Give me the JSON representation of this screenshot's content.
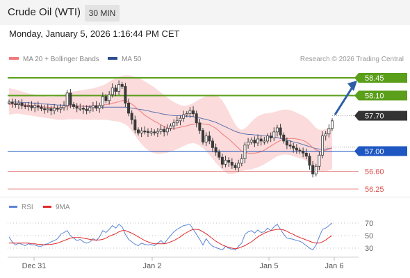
{
  "header": {
    "instrument": "Crude Oil (WTI)",
    "timeframe": "30 MIN"
  },
  "datetime": "Monday, January 5, 2026 1:16:44 PM CET",
  "legend": {
    "bollinger": "MA 20 + Bollinger Bands",
    "ma50": "MA 50"
  },
  "credit": "Research © 2026 Trading Central",
  "rsi_legend": {
    "rsi": "RSI",
    "ma9": "9MA"
  },
  "colors": {
    "resistance": "#5a9e1a",
    "support": "#1f57c2",
    "pivot": "#333333",
    "stop": "#e88b8b",
    "arrow": "#2f5ea8",
    "band": "#fbd7d7",
    "ma20": "#f07b7b",
    "ma50": "#5e73b0",
    "rsi": "#5b84d6",
    "rsi_ma": "#e02a2a",
    "candle": "#3a3a3a",
    "bull": "#ffffff"
  },
  "chart_data": [
    {
      "type": "candlestick",
      "title": "Crude Oil (WTI)",
      "x_labels": [
        "Dec 31",
        "Jan 2",
        "Jan 5",
        "Jan 6"
      ],
      "ylim": [
        56.0,
        58.75
      ],
      "levels": [
        {
          "value": 58.45,
          "label": "58.45",
          "kind": "resistance"
        },
        {
          "value": 58.1,
          "label": "58.10",
          "kind": "resistance"
        },
        {
          "value": 57.7,
          "label": "57.70",
          "kind": "pivot"
        },
        {
          "value": 57.0,
          "label": "57.00",
          "kind": "support"
        },
        {
          "value": 56.6,
          "label": "56.60",
          "kind": "stop"
        },
        {
          "value": 56.25,
          "label": "56.25",
          "kind": "stop"
        }
      ],
      "closes": [
        57.97,
        57.94,
        57.92,
        57.95,
        57.9,
        57.88,
        57.9,
        57.86,
        57.9,
        57.87,
        57.84,
        57.82,
        57.84,
        57.8,
        57.85,
        57.83,
        57.86,
        57.9,
        58.15,
        57.92,
        57.88,
        57.85,
        57.85,
        57.83,
        57.8,
        57.86,
        57.9,
        57.85,
        57.9,
        58.08,
        58.0,
        58.12,
        58.25,
        58.18,
        58.32,
        58.28,
        57.95,
        57.75,
        57.62,
        57.42,
        57.36,
        57.4,
        57.39,
        57.37,
        57.38,
        57.36,
        57.39,
        57.43,
        57.38,
        57.45,
        57.5,
        57.56,
        57.6,
        57.65,
        57.72,
        57.74,
        57.8,
        57.74,
        57.56,
        57.41,
        57.18,
        57.3,
        57.2,
        57.07,
        56.98,
        56.88,
        56.74,
        56.82,
        56.78,
        56.72,
        56.67,
        56.76,
        56.85,
        57.12,
        57.18,
        57.22,
        57.16,
        57.24,
        57.2,
        57.2,
        57.3,
        57.26,
        57.38,
        57.46,
        57.32,
        57.2,
        57.12,
        57.1,
        57.06,
        57.02,
        57.0,
        56.96,
        56.9,
        56.72,
        56.55,
        56.7,
        56.92,
        57.3,
        57.34,
        57.45,
        57.6
      ],
      "ma20": [
        57.92,
        57.93,
        57.93,
        57.93,
        57.92,
        57.91,
        57.91,
        57.9,
        57.9,
        57.89,
        57.88,
        57.87,
        57.87,
        57.86,
        57.86,
        57.85,
        57.86,
        57.87,
        57.89,
        57.89,
        57.89,
        57.89,
        57.89,
        57.89,
        57.89,
        57.89,
        57.9,
        57.9,
        57.9,
        57.91,
        57.92,
        57.93,
        57.95,
        57.96,
        57.98,
        58.0,
        58.0,
        57.97,
        57.93,
        57.88,
        57.82,
        57.77,
        57.71,
        57.67,
        57.63,
        57.59,
        57.56,
        57.52,
        57.49,
        57.46,
        57.44,
        57.45,
        57.46,
        57.47,
        57.49,
        57.5,
        57.52,
        57.53,
        57.54,
        57.55,
        57.54,
        57.53,
        57.52,
        57.49,
        57.45,
        57.4,
        57.34,
        57.29,
        57.24,
        57.18,
        57.12,
        57.06,
        57.0,
        56.98,
        56.96,
        56.96,
        56.96,
        56.97,
        56.99,
        57.02,
        57.06,
        57.1,
        57.14,
        57.18,
        57.21,
        57.24,
        57.25,
        57.25,
        57.25,
        57.24,
        57.23,
        57.21,
        57.18,
        57.13,
        57.07,
        57.02,
        57.0,
        57.0,
        57.02,
        57.04,
        57.06
      ],
      "ma50": [
        57.97,
        57.97,
        57.97,
        57.97,
        57.96,
        57.96,
        57.96,
        57.95,
        57.95,
        57.95,
        57.94,
        57.93,
        57.93,
        57.92,
        57.92,
        57.91,
        57.91,
        57.91,
        57.91,
        57.9,
        57.9,
        57.9,
        57.89,
        57.89,
        57.88,
        57.88,
        57.88,
        57.87,
        57.87,
        57.87,
        57.87,
        57.87,
        57.87,
        57.87,
        57.87,
        57.87,
        57.87,
        57.86,
        57.85,
        57.84,
        57.83,
        57.82,
        57.81,
        57.8,
        57.78,
        57.77,
        57.76,
        57.74,
        57.73,
        57.72,
        57.71,
        57.7,
        57.7,
        57.7,
        57.69,
        57.69,
        57.69,
        57.68,
        57.67,
        57.66,
        57.64,
        57.63,
        57.61,
        57.59,
        57.57,
        57.54,
        57.51,
        57.48,
        57.45,
        57.42,
        57.39,
        57.37,
        57.35,
        57.34,
        57.33,
        57.33,
        57.32,
        57.32,
        57.31,
        57.3,
        57.3,
        57.29,
        57.28,
        57.27,
        57.25,
        57.24,
        57.22,
        57.2,
        57.18,
        57.17,
        57.15,
        57.13,
        57.11,
        57.09,
        57.07,
        57.05,
        57.04,
        57.04,
        57.04,
        57.05,
        57.06
      ],
      "bands": {
        "upper": [
          58.25,
          58.23,
          58.22,
          58.2,
          58.18,
          58.16,
          58.14,
          58.13,
          58.12,
          58.11,
          58.1,
          58.09,
          58.08,
          58.08,
          58.08,
          58.09,
          58.1,
          58.12,
          58.15,
          58.17,
          58.18,
          58.19,
          58.2,
          58.21,
          58.22,
          58.23,
          58.24,
          58.26,
          58.28,
          58.3,
          58.33,
          58.37,
          58.41,
          58.44,
          58.47,
          58.49,
          58.5,
          58.5,
          58.49,
          58.47,
          58.45,
          58.42,
          58.38,
          58.34,
          58.3,
          58.26,
          58.21,
          58.16,
          58.11,
          58.06,
          58.01,
          57.97,
          57.94,
          57.91,
          57.9,
          57.9,
          57.92,
          57.95,
          57.99,
          58.03,
          58.06,
          58.09,
          58.11,
          58.12,
          58.11,
          58.07,
          58.0,
          57.9,
          57.78,
          57.65,
          57.53,
          57.45,
          57.42,
          57.45,
          57.51,
          57.58,
          57.64,
          57.69,
          57.72,
          57.74,
          57.75,
          57.76,
          57.77,
          57.79,
          57.81,
          57.82,
          57.82,
          57.81,
          57.79,
          57.76,
          57.73,
          57.7,
          57.66,
          57.6,
          57.53,
          57.46,
          57.42,
          57.42,
          57.44,
          57.45,
          57.46
        ],
        "lower": [
          57.72,
          57.73,
          57.74,
          57.74,
          57.73,
          57.72,
          57.71,
          57.7,
          57.69,
          57.68,
          57.67,
          57.66,
          57.65,
          57.64,
          57.63,
          57.62,
          57.62,
          57.62,
          57.63,
          57.63,
          57.63,
          57.63,
          57.63,
          57.62,
          57.62,
          57.62,
          57.62,
          57.62,
          57.62,
          57.62,
          57.62,
          57.61,
          57.6,
          57.59,
          57.58,
          57.56,
          57.53,
          57.48,
          57.4,
          57.31,
          57.22,
          57.14,
          57.07,
          57.02,
          56.98,
          56.96,
          56.95,
          56.95,
          56.96,
          56.97,
          56.99,
          57.01,
          57.04,
          57.07,
          57.1,
          57.13,
          57.15,
          57.16,
          57.14,
          57.11,
          57.06,
          57.0,
          56.93,
          56.85,
          56.77,
          56.7,
          56.63,
          56.58,
          56.55,
          56.55,
          56.56,
          56.58,
          56.6,
          56.62,
          56.63,
          56.64,
          56.66,
          56.68,
          56.71,
          56.74,
          56.78,
          56.82,
          56.86,
          56.9,
          56.92,
          56.93,
          56.93,
          56.92,
          56.9,
          56.88,
          56.86,
          56.84,
          56.81,
          56.76,
          56.7,
          56.64,
          56.6,
          56.58,
          56.6,
          56.62,
          56.64
        ]
      },
      "forecast": {
        "from": 57.72,
        "to": 58.45
      }
    },
    {
      "type": "line",
      "title": "RSI",
      "yticks": [
        70,
        50,
        30
      ],
      "ylim": [
        20,
        80
      ],
      "series": [
        {
          "name": "RSI",
          "values": [
            48,
            40,
            35,
            38,
            36,
            34,
            37,
            35,
            35,
            33,
            33,
            36,
            37,
            40,
            42,
            45,
            52,
            55,
            58,
            50,
            46,
            42,
            44,
            40,
            38,
            40,
            45,
            42,
            48,
            58,
            55,
            60,
            66,
            62,
            68,
            64,
            52,
            44,
            40,
            36,
            34,
            38,
            36,
            35,
            36,
            34,
            38,
            42,
            37,
            44,
            50,
            56,
            60,
            63,
            66,
            67,
            68,
            60,
            52,
            44,
            35,
            45,
            38,
            33,
            31,
            29,
            27,
            33,
            30,
            28,
            27,
            33,
            38,
            52,
            56,
            58,
            54,
            59,
            55,
            56,
            62,
            58,
            64,
            68,
            60,
            52,
            46,
            45,
            44,
            42,
            41,
            38,
            34,
            30,
            27,
            35,
            48,
            60,
            62,
            66,
            70
          ]
        },
        {
          "name": "9MA",
          "values": [
            38,
            38,
            38,
            38,
            38,
            38,
            38,
            37,
            37,
            36,
            36,
            35,
            36,
            36,
            37,
            38,
            40,
            42,
            44,
            46,
            47,
            47,
            47,
            46,
            45,
            44,
            43,
            43,
            43,
            44,
            46,
            49,
            51,
            53,
            56,
            58,
            58,
            56,
            54,
            51,
            48,
            45,
            42,
            40,
            38,
            37,
            37,
            37,
            37,
            38,
            40,
            42,
            45,
            48,
            52,
            55,
            58,
            60,
            60,
            59,
            56,
            53,
            49,
            45,
            41,
            38,
            35,
            33,
            31,
            30,
            29,
            30,
            32,
            34,
            37,
            40,
            44,
            48,
            51,
            54,
            56,
            58,
            59,
            60,
            60,
            59,
            57,
            54,
            52,
            49,
            47,
            45,
            43,
            41,
            39,
            38,
            38,
            40,
            43,
            47,
            50
          ]
        }
      ]
    }
  ]
}
